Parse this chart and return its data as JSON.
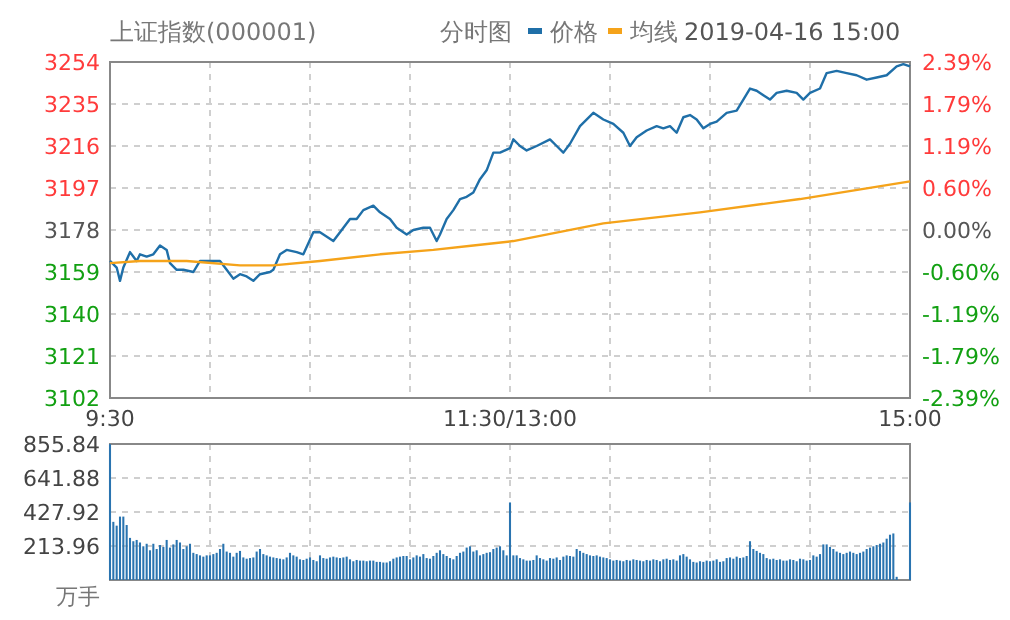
{
  "chart_data": [
    {
      "type": "line",
      "title": "上证指数(000001)",
      "subtitle": "分时图",
      "annotations": [
        "2019-04-16 15:00"
      ],
      "legend": "top right",
      "grid": true,
      "marker": "none",
      "line_style": "solid",
      "categories": [
        "9:30",
        null,
        null,
        null,
        null,
        null,
        null,
        null,
        null,
        null,
        null,
        null,
        null,
        null,
        null,
        null,
        null,
        null,
        null,
        null,
        null,
        null,
        null,
        null,
        null,
        null,
        null,
        null,
        null,
        null,
        null,
        null,
        null,
        null,
        null,
        null,
        null,
        null,
        null,
        null,
        null,
        null,
        null,
        null,
        null,
        null,
        null,
        null,
        null,
        null,
        null,
        null,
        null,
        null,
        null,
        null,
        null,
        null,
        null,
        null,
        null,
        null,
        null,
        null,
        null,
        null,
        null,
        null,
        null,
        null,
        null,
        null,
        null,
        null,
        null,
        null,
        null,
        null,
        null,
        null,
        null,
        null,
        null,
        null,
        null,
        null,
        null,
        null,
        null,
        null,
        null,
        null,
        null,
        null,
        null,
        null,
        null,
        null,
        null,
        null,
        null,
        null,
        null,
        null,
        null,
        null,
        null,
        null,
        null,
        null,
        null,
        null,
        null,
        null,
        null,
        null,
        null,
        null,
        null,
        null,
        "11:30/13:00",
        null,
        null,
        null,
        null,
        null,
        null,
        null,
        null,
        null,
        null,
        null,
        null,
        null,
        null,
        null,
        null,
        null,
        null,
        null,
        null,
        null,
        null,
        null,
        null,
        null,
        null,
        null,
        null,
        null,
        null,
        null,
        null,
        null,
        null,
        null,
        null,
        null,
        null,
        null,
        null,
        null,
        null,
        null,
        null,
        null,
        null,
        null,
        null,
        null,
        null,
        null,
        null,
        null,
        null,
        null,
        null,
        null,
        null,
        null,
        null,
        null,
        null,
        null,
        null,
        null,
        null,
        null,
        null,
        null,
        null,
        null,
        null,
        null,
        null,
        null,
        null,
        null,
        null,
        null,
        null,
        null,
        null,
        null,
        null,
        null,
        null,
        null,
        null,
        null,
        null,
        null,
        null,
        null,
        null,
        null,
        null,
        null,
        null,
        null,
        null,
        null,
        null,
        null,
        null,
        null,
        null,
        null,
        null,
        null,
        null,
        null,
        null,
        null,
        null,
        null,
        null,
        null,
        null,
        null,
        "15:00"
      ],
      "ylim": [
        3102,
        3254
      ],
      "yticks": [
        3102,
        3121,
        3140,
        3159,
        3178,
        3197,
        3216,
        3235,
        3254
      ],
      "y2lim": [
        -2.39,
        2.39
      ],
      "y2ticks": [
        {
          "value": -2.39,
          "label": "-2.39%"
        },
        {
          "value": -1.79,
          "label": "-1.79%"
        },
        {
          "value": -1.19,
          "label": "-1.19%"
        },
        {
          "value": -0.6,
          "label": "-0.60%"
        },
        {
          "value": 0,
          "label": "0.00%"
        },
        {
          "value": 0.6,
          "label": "0.60%"
        },
        {
          "value": 1.19,
          "label": "1.19%"
        },
        {
          "value": 1.79,
          "label": "1.79%"
        },
        {
          "value": 2.39,
          "label": "2.39%"
        }
      ],
      "series": [
        {
          "name": "价格",
          "color": "#1f6fa8",
          "values": [
            3164,
            null,
            3161,
            3155,
            3161,
            null,
            3168,
            null,
            3164,
            3167,
            null,
            3166,
            null,
            3167,
            null,
            3171,
            null,
            3169,
            3163,
            null,
            3160,
            null,
            3160,
            null,
            null,
            3159,
            null,
            3164,
            null,
            null,
            3164,
            null,
            null,
            3164,
            null,
            3160,
            null,
            3156,
            null,
            3158,
            null,
            3157,
            null,
            3155,
            null,
            3158,
            null,
            null,
            3159,
            3160,
            null,
            3167,
            null,
            3169,
            null,
            null,
            3168,
            null,
            3167,
            null,
            null,
            3177,
            null,
            3177,
            null,
            null,
            null,
            3173,
            null,
            3177,
            null,
            null,
            3183,
            null,
            3183,
            null,
            3187,
            null,
            null,
            3189,
            null,
            3186,
            null,
            null,
            3183,
            null,
            3179,
            null,
            null,
            3176,
            null,
            3178,
            null,
            null,
            3179,
            null,
            3179,
            null,
            3173,
            3176,
            null,
            3183,
            null,
            3187,
            null,
            3192,
            null,
            3193,
            null,
            3195,
            null,
            3201,
            null,
            3205,
            null,
            3213,
            null,
            3213,
            null,
            null,
            3215,
            3219,
            null,
            3216,
            null,
            3214,
            null,
            null,
            3216,
            null,
            null,
            null,
            3219,
            null,
            3216,
            null,
            3213,
            null,
            3217,
            null,
            null,
            3225,
            null,
            null,
            null,
            3231,
            null,
            null,
            3228,
            null,
            null,
            3226,
            null,
            null,
            3222,
            null,
            3216,
            null,
            3220,
            null,
            null,
            3223,
            null,
            null,
            3225,
            null,
            3224,
            null,
            3225,
            null,
            3222,
            null,
            3229,
            null,
            3230,
            null,
            3228,
            null,
            3224,
            null,
            3226,
            null,
            3227,
            null,
            null,
            3231,
            null,
            null,
            3232,
            null,
            3237,
            null,
            3242,
            null,
            3241,
            null,
            3239,
            null,
            3237,
            null,
            3240,
            null,
            null,
            3241,
            null,
            null,
            3240,
            null,
            3237,
            null,
            3240,
            null,
            null,
            3242,
            null,
            3249,
            null,
            null,
            3250,
            null,
            null,
            3249,
            null,
            null,
            3248,
            null,
            null,
            3246,
            null,
            null,
            3247,
            null,
            null,
            3248,
            null,
            null,
            3252,
            null,
            3253,
            null,
            3252
          ]
        },
        {
          "name": "均线",
          "color": "#f5a31a",
          "values": [
            3163,
            null,
            null,
            null,
            null,
            null,
            null,
            null,
            null,
            3164,
            null,
            null,
            null,
            null,
            null,
            null,
            null,
            null,
            null,
            null,
            null,
            null,
            null,
            3164,
            null,
            null,
            null,
            null,
            null,
            null,
            null,
            null,
            null,
            null,
            null,
            null,
            null,
            null,
            null,
            3162,
            null,
            null,
            null,
            null,
            null,
            null,
            null,
            null,
            null,
            3162,
            null,
            null,
            null,
            null,
            null,
            null,
            null,
            null,
            null,
            null,
            null,
            null,
            null,
            3164,
            null,
            null,
            null,
            null,
            null,
            null,
            null,
            null,
            null,
            null,
            null,
            null,
            null,
            null,
            null,
            null,
            null,
            3167,
            null,
            null,
            null,
            null,
            null,
            null,
            null,
            null,
            null,
            null,
            null,
            null,
            null,
            null,
            null,
            3169,
            null,
            null,
            null,
            null,
            null,
            null,
            null,
            null,
            null,
            null,
            null,
            3171,
            null,
            null,
            null,
            null,
            null,
            null,
            null,
            null,
            null,
            null,
            null,
            3173,
            null,
            null,
            null,
            null,
            null,
            null,
            null,
            null,
            null,
            null,
            null,
            null,
            null,
            null,
            null,
            null,
            null,
            null,
            null,
            null,
            null,
            null,
            null,
            null,
            null,
            null,
            3181,
            null,
            null,
            null,
            null,
            null,
            null,
            null,
            null,
            null,
            null,
            null,
            null,
            null,
            null,
            null,
            null,
            null,
            null,
            null,
            null,
            null,
            null,
            null,
            null,
            null,
            null,
            null,
            null,
            3186,
            null,
            null,
            null,
            null,
            null,
            null,
            null,
            null,
            null,
            null,
            null,
            null,
            null,
            null,
            null,
            null,
            null,
            null,
            null,
            null,
            null,
            null,
            null,
            null,
            null,
            null,
            null,
            null,
            null,
            3192,
            null,
            null,
            null,
            null,
            null,
            null,
            null,
            null,
            null,
            null,
            null,
            null,
            null,
            null,
            null,
            null,
            null,
            null,
            null,
            null,
            null,
            null,
            null,
            null,
            null,
            null,
            null,
            null,
            null,
            null,
            null,
            null,
            3200
          ]
        }
      ]
    },
    {
      "type": "bar",
      "ylabel": "万手",
      "grid": true,
      "tick_labels": "y",
      "categories": [
        null,
        null,
        null,
        null,
        null,
        null,
        null,
        null,
        null,
        null,
        null,
        null,
        null,
        null,
        null,
        null,
        null,
        null,
        null,
        null,
        null,
        null,
        null,
        null,
        null,
        null,
        null,
        null,
        null,
        null,
        null,
        null,
        null,
        null,
        null,
        null,
        null,
        null,
        null,
        null,
        null,
        null,
        null,
        null,
        null,
        null,
        null,
        null,
        null,
        null,
        null,
        null,
        null,
        null,
        null,
        null,
        null,
        null,
        null,
        null,
        null,
        null,
        null,
        null,
        null,
        null,
        null,
        null,
        null,
        null,
        null,
        null,
        null,
        null,
        null,
        null,
        null,
        null,
        null,
        null,
        null,
        null,
        null,
        null,
        null,
        null,
        null,
        null,
        null,
        null,
        null,
        null,
        null,
        null,
        null,
        null,
        null,
        null,
        null,
        null,
        null,
        null,
        null,
        null,
        null,
        null,
        null,
        null,
        null,
        null,
        null,
        null,
        null,
        null,
        null,
        null,
        null,
        null,
        null,
        null,
        null,
        null,
        null,
        null,
        null,
        null,
        null,
        null,
        null,
        null,
        null,
        null,
        null,
        null,
        null,
        null,
        null,
        null,
        null,
        null,
        null,
        null,
        null,
        null,
        null,
        null,
        null,
        null,
        null,
        null,
        null,
        null,
        null,
        null,
        null,
        null,
        null,
        null,
        null,
        null,
        null,
        null,
        null,
        null,
        null,
        null,
        null,
        null,
        null,
        null,
        null,
        null,
        null,
        null,
        null,
        null,
        null,
        null,
        null,
        null,
        null,
        null,
        null,
        null,
        null,
        null,
        null,
        null,
        null,
        null,
        null,
        null,
        null,
        null,
        null,
        null,
        null,
        null,
        null,
        null,
        null,
        null,
        null,
        null,
        null,
        null,
        null,
        null,
        null,
        null,
        null,
        null,
        null,
        null,
        null,
        null,
        null,
        null,
        null,
        null,
        null,
        null,
        null,
        null,
        null,
        null,
        null,
        null,
        null,
        null,
        null,
        null,
        null,
        null,
        null,
        null,
        null,
        null,
        null,
        null,
        null
      ],
      "ylim": [
        0,
        855.84
      ],
      "yticks": [
        213.96,
        427.92,
        641.88,
        855.84
      ],
      "series": [
        {
          "color": "#2a74b0",
          "values": [
            855,
            366,
            342,
            399,
            399,
            346,
            265,
            244,
            252,
            236,
            212,
            228,
            187,
            228,
            195,
            220,
            208,
            252,
            204,
            224,
            252,
            236,
            195,
            212,
            228,
            171,
            163,
            155,
            147,
            155,
            155,
            163,
            171,
            195,
            228,
            179,
            171,
            147,
            171,
            183,
            142,
            134,
            138,
            142,
            179,
            195,
            163,
            155,
            147,
            142,
            138,
            134,
            130,
            142,
            171,
            155,
            147,
            130,
            126,
            134,
            142,
            126,
            118,
            155,
            138,
            134,
            142,
            147,
            142,
            138,
            142,
            147,
            130,
            118,
            126,
            122,
            122,
            118,
            122,
            122,
            114,
            114,
            110,
            110,
            118,
            134,
            142,
            147,
            151,
            151,
            130,
            142,
            155,
            147,
            163,
            138,
            134,
            151,
            171,
            187,
            163,
            151,
            138,
            130,
            151,
            171,
            179,
            204,
            212,
            179,
            187,
            155,
            163,
            171,
            175,
            195,
            204,
            212,
            187,
            155,
            488,
            155,
            155,
            138,
            130,
            122,
            122,
            126,
            155,
            138,
            130,
            122,
            138,
            134,
            142,
            126,
            147,
            155,
            151,
            147,
            195,
            183,
            171,
            163,
            155,
            151,
            155,
            147,
            142,
            138,
            130,
            122,
            126,
            122,
            118,
            126,
            122,
            130,
            126,
            122,
            118,
            126,
            122,
            130,
            126,
            118,
            130,
            134,
            126,
            130,
            122,
            155,
            163,
            147,
            130,
            114,
            110,
            118,
            114,
            122,
            118,
            122,
            130,
            114,
            118,
            138,
            142,
            134,
            147,
            138,
            142,
            151,
            244,
            195,
            183,
            171,
            163,
            138,
            130,
            134,
            126,
            130,
            122,
            122,
            130,
            126,
            118,
            134,
            130,
            122,
            126,
            155,
            147,
            163,
            224,
            224,
            208,
            195,
            179,
            171,
            163,
            171,
            179,
            171,
            163,
            171,
            179,
            195,
            204,
            212,
            220,
            228,
            236,
            260,
            285,
            293,
            20,
            0,
            0,
            0,
            488
          ]
        }
      ]
    }
  ]
}
